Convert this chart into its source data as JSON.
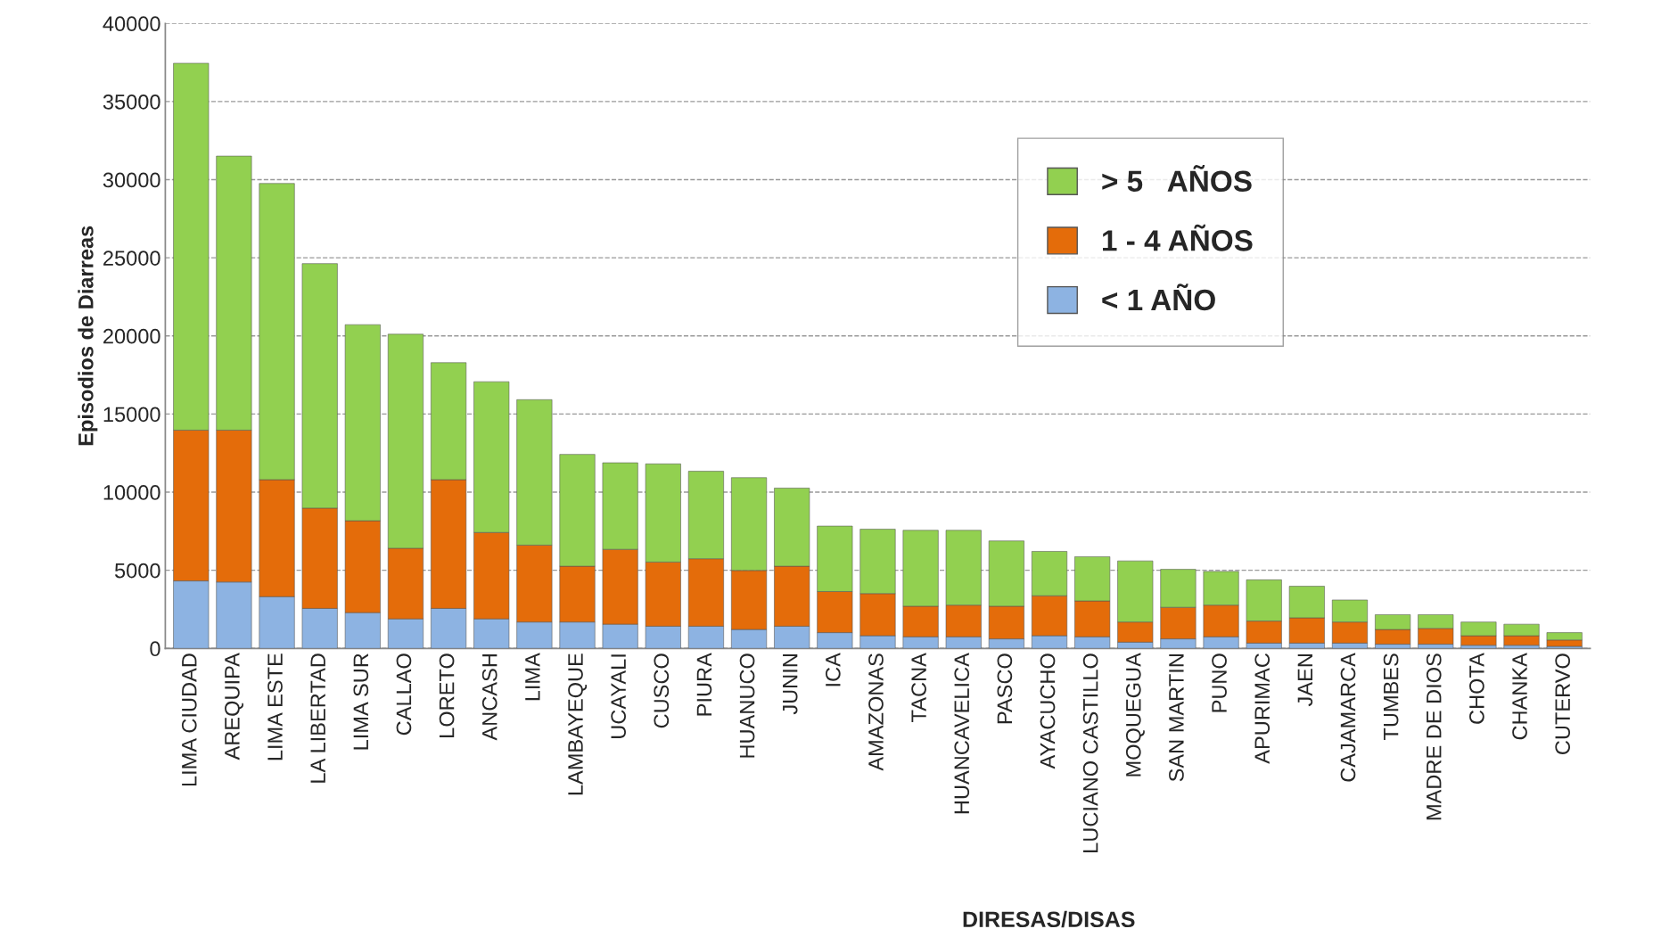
{
  "chart_data": {
    "type": "bar",
    "stacked": true,
    "xlabel": "DIRESAS/DISAS",
    "ylabel": "Episodios de Diarreas",
    "categories": [
      "LIMA CIUDAD",
      "AREQUIPA",
      "LIMA ESTE",
      "LA LIBERTAD",
      "LIMA SUR",
      "CALLAO",
      "LORETO",
      "ANCASH",
      "LIMA",
      "LAMBAYEQUE",
      "UCAYALI",
      "CUSCO",
      "PIURA",
      "HUANUCO",
      "JUNIN",
      "ICA",
      "AMAZONAS",
      "TACNA",
      "HUANCAVELICA",
      "PASCO",
      "AYACUCHO",
      "LUCIANO CASTILLO",
      "MOQUEGUA",
      "SAN MARTIN",
      "PUNO",
      "APURIMAC",
      "JAEN",
      "CAJAMARCA",
      "TUMBES",
      "MADRE DE DIOS",
      "CHOTA",
      "CHANKA",
      "CUTERVO"
    ],
    "series": [
      {
        "name": "< 1 AÑO",
        "color": "#8db3e2",
        "values": [
          4320,
          4250,
          3310,
          2560,
          2290,
          1890,
          2560,
          1890,
          1690,
          1690,
          1550,
          1420,
          1420,
          1210,
          1420,
          1010,
          810,
          740,
          740,
          610,
          810,
          740,
          400,
          610,
          740,
          340,
          340,
          340,
          270,
          270,
          200,
          200,
          130
        ]
      },
      {
        "name": "1 - 4 AÑOS",
        "color": "#e46c0a",
        "values": [
          9650,
          9720,
          7490,
          6420,
          5880,
          4520,
          8240,
          5530,
          4920,
          3570,
          4790,
          4110,
          4320,
          3780,
          3840,
          2630,
          2700,
          1960,
          2030,
          2090,
          2560,
          2300,
          1290,
          2020,
          2030,
          1410,
          1620,
          1350,
          940,
          1010,
          610,
          610,
          410
        ]
      },
      {
        "name": "> 5   AÑOS",
        "color": "#92d050",
        "values": [
          23480,
          17540,
          18960,
          15650,
          12550,
          13700,
          7490,
          9650,
          9310,
          7160,
          5540,
          6280,
          5600,
          5940,
          5000,
          4190,
          4120,
          4860,
          4790,
          4180,
          2840,
          2830,
          3910,
          2430,
          2160,
          2640,
          2020,
          1410,
          950,
          880,
          880,
          740,
          470
        ]
      }
    ],
    "ylim": [
      0,
      40000
    ],
    "yticks": [
      0,
      5000,
      10000,
      15000,
      20000,
      25000,
      30000,
      35000,
      40000
    ],
    "grid": "y",
    "legend": "top right"
  }
}
